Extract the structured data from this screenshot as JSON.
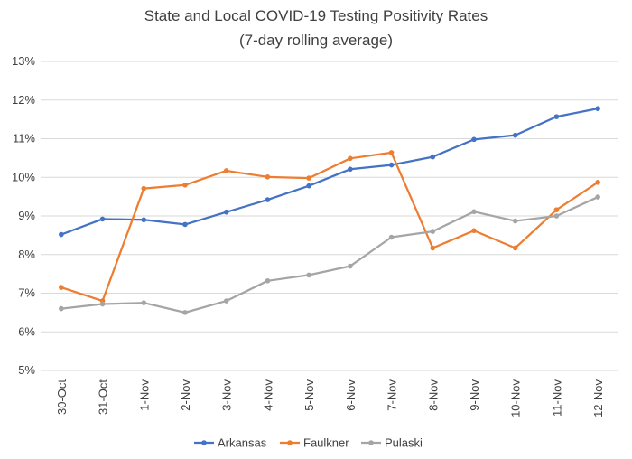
{
  "chart_data": {
    "type": "line",
    "title": "State and Local COVID-19 Testing Positivity Rates",
    "subtitle": "(7-day rolling average)",
    "xlabel": "",
    "ylabel": "",
    "categories": [
      "30-Oct",
      "31-Oct",
      "1-Nov",
      "2-Nov",
      "3-Nov",
      "4-Nov",
      "5-Nov",
      "6-Nov",
      "7-Nov",
      "8-Nov",
      "9-Nov",
      "10-Nov",
      "11-Nov",
      "12-Nov"
    ],
    "ylim": [
      5,
      13
    ],
    "yticks": [
      5,
      6,
      7,
      8,
      9,
      10,
      11,
      12,
      13
    ],
    "ytick_suffix": "%",
    "grid": true,
    "legend_position": "bottom",
    "series": [
      {
        "name": "Arkansas",
        "color": "#4472C4",
        "values": [
          8.52,
          8.92,
          8.9,
          8.78,
          9.1,
          9.42,
          9.78,
          10.21,
          10.32,
          10.53,
          10.98,
          11.09,
          11.57,
          11.78
        ]
      },
      {
        "name": "Faulkner",
        "color": "#ED7D31",
        "values": [
          7.15,
          6.8,
          9.71,
          9.8,
          10.17,
          10.01,
          9.98,
          10.49,
          10.64,
          8.17,
          8.62,
          8.17,
          9.16,
          9.87
        ]
      },
      {
        "name": "Pulaski",
        "color": "#A5A5A5",
        "values": [
          6.6,
          6.72,
          6.75,
          6.5,
          6.8,
          7.32,
          7.47,
          7.7,
          8.45,
          8.6,
          9.11,
          8.87,
          9.0,
          9.49
        ]
      }
    ]
  }
}
